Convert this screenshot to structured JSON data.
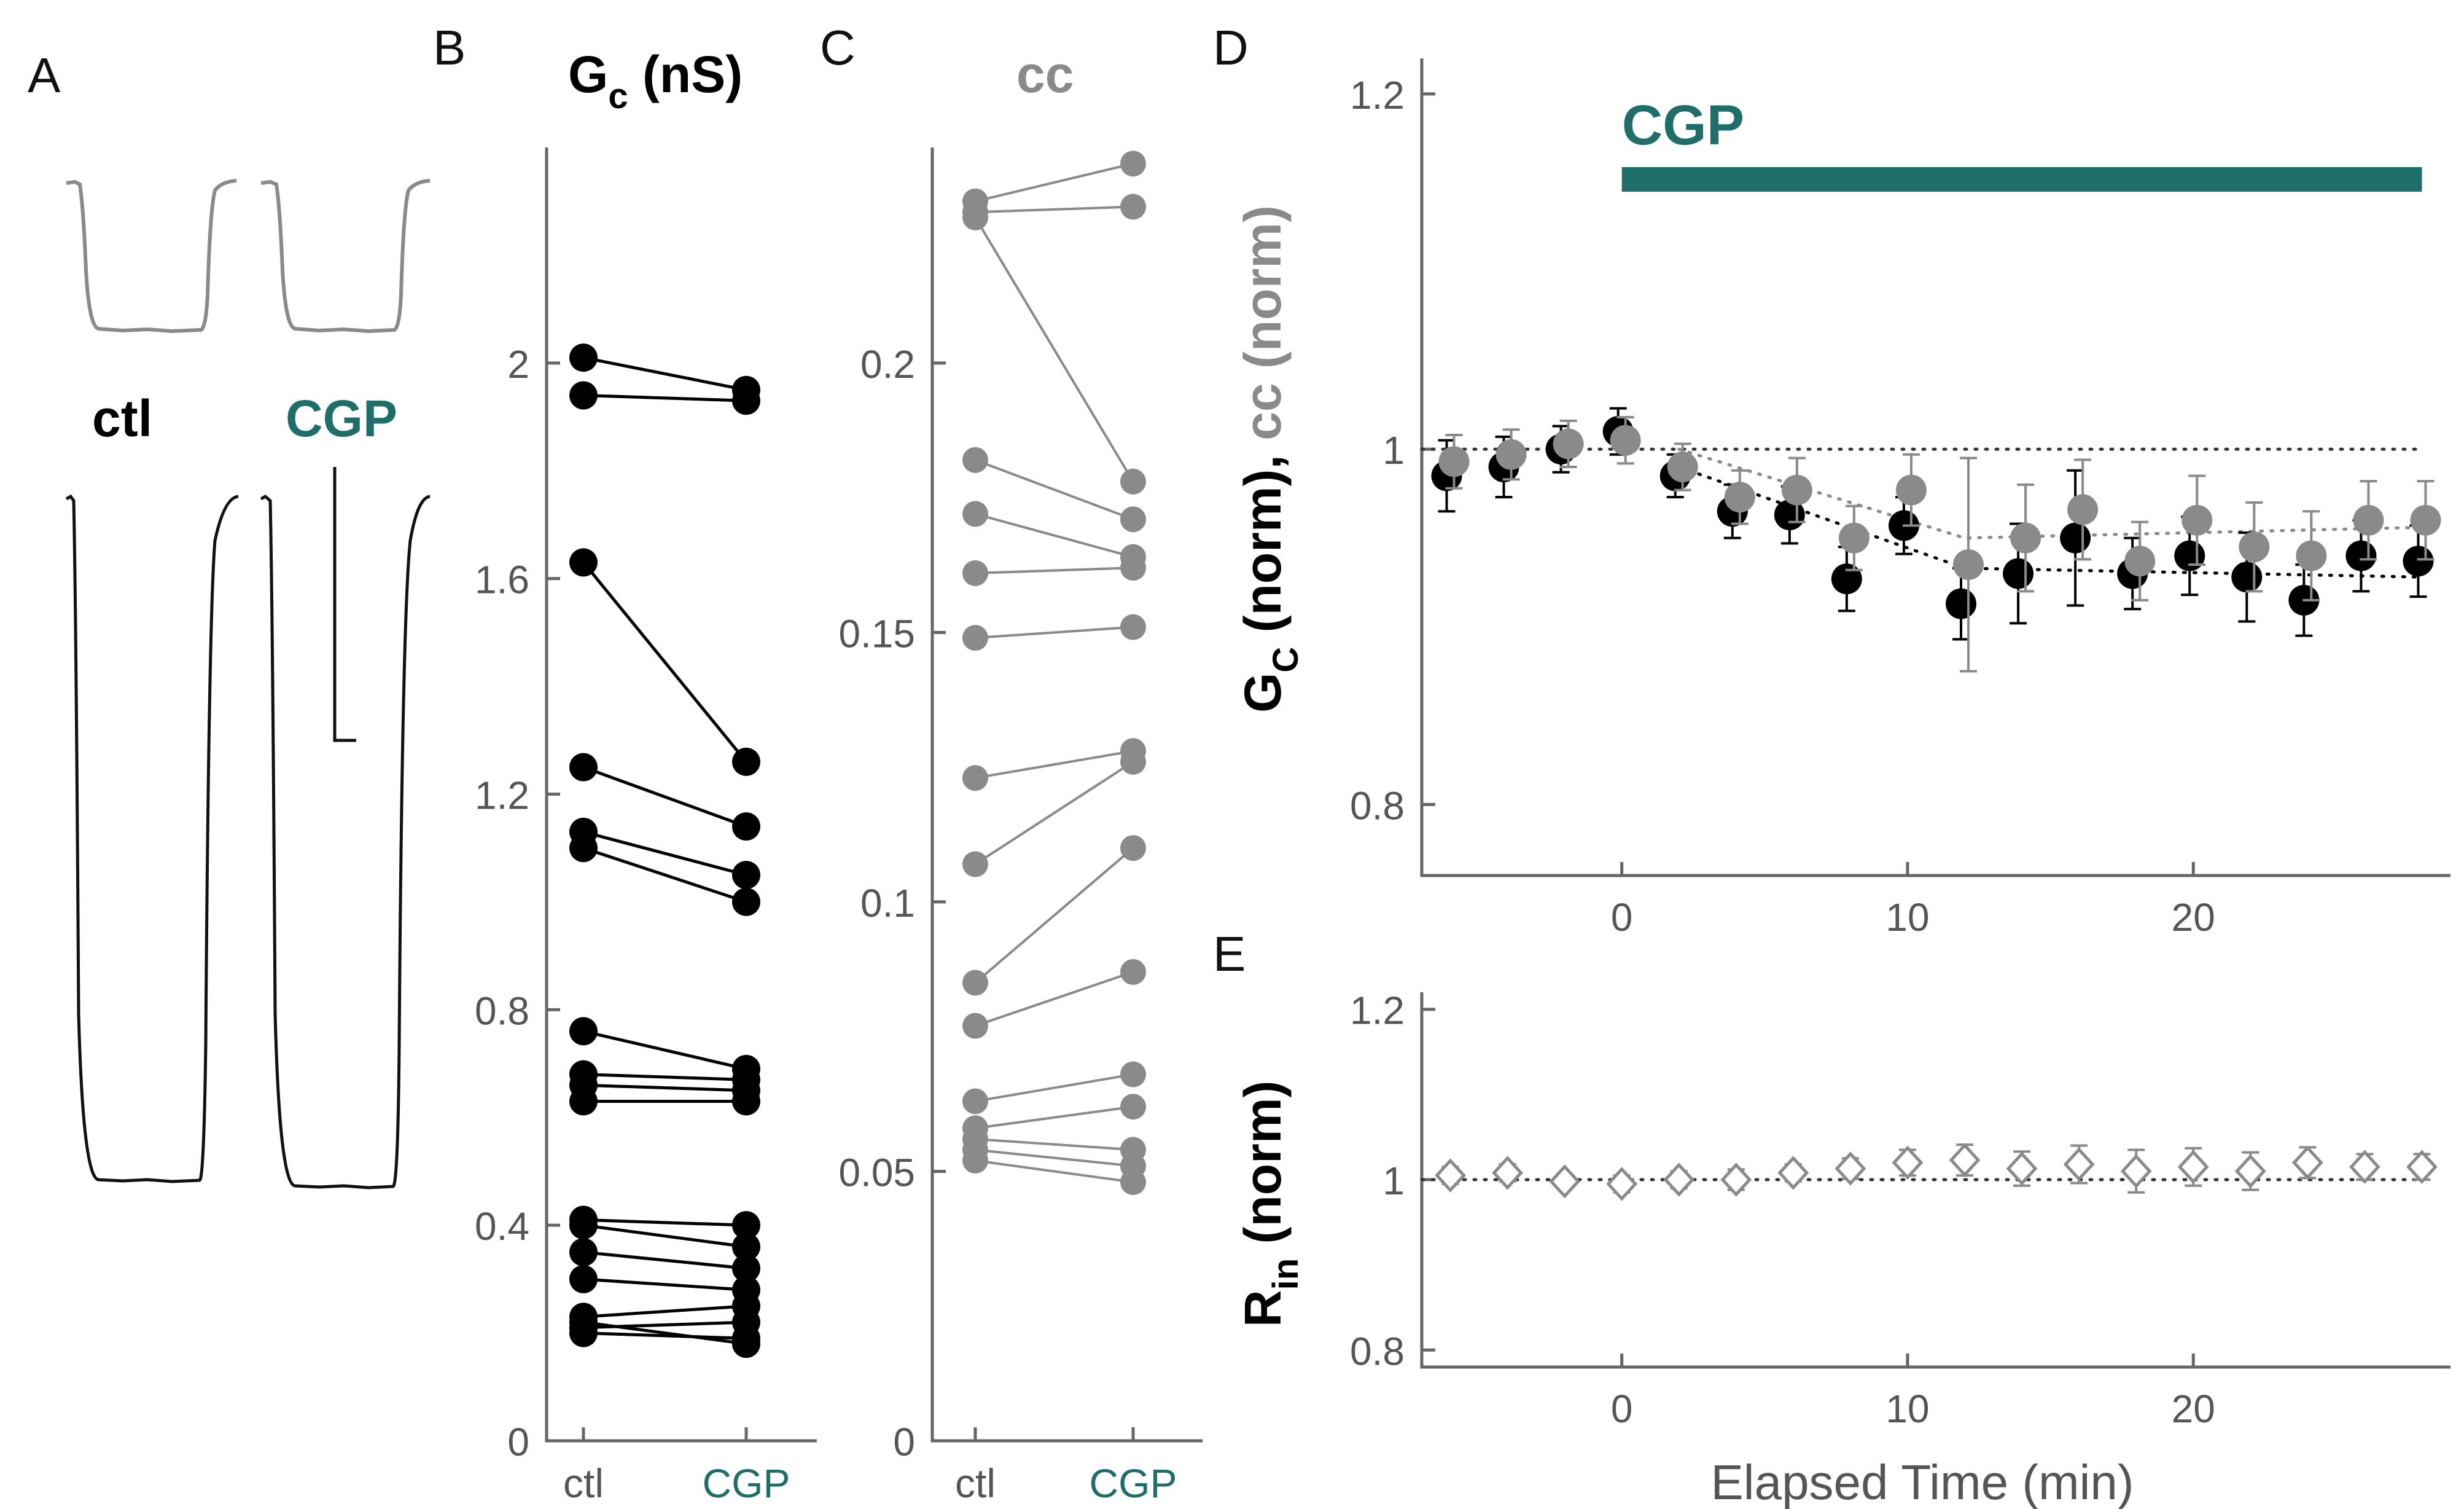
{
  "colors": {
    "black": "#000000",
    "gray": "#8a8a8a",
    "teal": "#1f6e6a",
    "axis": "#666666",
    "dotted": "#333333",
    "tick_text": "#555555"
  },
  "panel_a": {
    "label": "A",
    "ctl_label": "ctl",
    "cgp_label": "CGP"
  },
  "chart_data": [
    {
      "id": "B",
      "type": "scatter",
      "title": "G",
      "title_sub": "c",
      "title_suffix": " (nS)",
      "categories": [
        "ctl",
        "CGP"
      ],
      "ylim": [
        0,
        2.4
      ],
      "yticks": [
        0,
        0.4,
        0.8,
        1.2,
        1.6,
        2
      ],
      "ytick_labels": [
        "0",
        "0.4",
        "0.8",
        "1.2",
        "1.6",
        "2"
      ],
      "pairs": [
        [
          2.01,
          1.95
        ],
        [
          1.94,
          1.93
        ],
        [
          1.63,
          1.26
        ],
        [
          1.25,
          1.14
        ],
        [
          1.13,
          1.05
        ],
        [
          1.1,
          1.0
        ],
        [
          0.76,
          0.69
        ],
        [
          0.68,
          0.67
        ],
        [
          0.66,
          0.65
        ],
        [
          0.63,
          0.63
        ],
        [
          0.41,
          0.4
        ],
        [
          0.4,
          0.36
        ],
        [
          0.35,
          0.32
        ],
        [
          0.3,
          0.28
        ],
        [
          0.23,
          0.25
        ],
        [
          0.21,
          0.22
        ],
        [
          0.2,
          0.19
        ],
        [
          0.22,
          0.18
        ]
      ]
    },
    {
      "id": "C",
      "type": "scatter",
      "title": "cc",
      "categories": [
        "ctl",
        "CGP"
      ],
      "ylim": [
        0,
        0.24
      ],
      "yticks": [
        0,
        0.05,
        0.1,
        0.15,
        0.2
      ],
      "ytick_labels": [
        "0",
        "0.05",
        "0.1",
        "0.15",
        "0.2"
      ],
      "pairs": [
        [
          0.23,
          0.237
        ],
        [
          0.228,
          0.229
        ],
        [
          0.227,
          0.178
        ],
        [
          0.182,
          0.171
        ],
        [
          0.172,
          0.164
        ],
        [
          0.161,
          0.162
        ],
        [
          0.149,
          0.151
        ],
        [
          0.123,
          0.128
        ],
        [
          0.107,
          0.126
        ],
        [
          0.085,
          0.11
        ],
        [
          0.077,
          0.087
        ],
        [
          0.063,
          0.068
        ],
        [
          0.058,
          0.062
        ],
        [
          0.056,
          0.054
        ],
        [
          0.054,
          0.051
        ],
        [
          0.052,
          0.048
        ]
      ]
    },
    {
      "id": "D",
      "type": "scatter",
      "ylabel_main": "G",
      "ylabel_sub": "C",
      "ylabel_rest": " (norm), ",
      "ylabel_cc": "cc (norm)",
      "xlim": [
        -7,
        29
      ],
      "ylim": [
        0.76,
        1.22
      ],
      "yticks": [
        0.8,
        1,
        1.2
      ],
      "ytick_labels": [
        "0.8",
        "1",
        "1.2"
      ],
      "xticks": [
        0,
        10,
        20
      ],
      "xtick_labels": [
        "0",
        "10",
        "20"
      ],
      "drug_bar": {
        "label": "CGP",
        "start": 0,
        "end": 28
      },
      "reference_line": 1,
      "series": [
        {
          "name": "Gc",
          "color": "black",
          "x": [
            -6,
            -4,
            -2,
            0,
            2,
            4,
            6,
            8,
            10,
            12,
            14,
            16,
            18,
            20,
            22,
            24,
            26,
            28
          ],
          "y": [
            0.985,
            0.99,
            1.0,
            1.01,
            0.985,
            0.965,
            0.963,
            0.927,
            0.957,
            0.913,
            0.93,
            0.95,
            0.93,
            0.94,
            0.928,
            0.915,
            0.94,
            0.937
          ],
          "err": [
            0.02,
            0.017,
            0.013,
            0.013,
            0.012,
            0.015,
            0.016,
            0.018,
            0.016,
            0.02,
            0.028,
            0.038,
            0.02,
            0.022,
            0.025,
            0.02,
            0.02,
            0.02
          ]
        },
        {
          "name": "cc",
          "color": "gray",
          "x": [
            -6,
            -4,
            -2,
            0,
            2,
            4,
            6,
            8,
            10,
            12,
            14,
            16,
            18,
            20,
            22,
            24,
            26,
            28
          ],
          "y": [
            0.993,
            0.997,
            1.003,
            1.005,
            0.99,
            0.973,
            0.977,
            0.95,
            0.977,
            0.935,
            0.95,
            0.966,
            0.937,
            0.96,
            0.945,
            0.94,
            0.96,
            0.96
          ],
          "err": [
            0.015,
            0.014,
            0.013,
            0.013,
            0.013,
            0.015,
            0.018,
            0.018,
            0.02,
            0.06,
            0.03,
            0.028,
            0.022,
            0.025,
            0.025,
            0.025,
            0.022,
            0.022
          ]
        }
      ],
      "fit_lines": [
        {
          "name": "Gc-fit",
          "color": "black",
          "x": [
            2,
            12,
            28
          ],
          "y": [
            0.99,
            0.933,
            0.928
          ]
        },
        {
          "name": "cc-fit",
          "color": "gray",
          "x": [
            2,
            12,
            28
          ],
          "y": [
            1.0,
            0.95,
            0.956
          ]
        }
      ]
    },
    {
      "id": "E",
      "type": "scatter",
      "ylabel_main": "R",
      "ylabel_sub": "in",
      "ylabel_rest": " (norm)",
      "xlabel": "Elapsed Time (min)",
      "xlim": [
        -7,
        29
      ],
      "ylim": [
        0.78,
        1.22
      ],
      "yticks": [
        0.8,
        1,
        1.2
      ],
      "ytick_labels": [
        "0.8",
        "1",
        "1.2"
      ],
      "xticks": [
        0,
        10,
        20
      ],
      "xtick_labels": [
        "0",
        "10",
        "20"
      ],
      "reference_line": 1,
      "series": [
        {
          "name": "Rin",
          "color": "gray",
          "marker": "diamond-open",
          "x": [
            -6,
            -4,
            -2,
            0,
            2,
            4,
            6,
            8,
            10,
            12,
            14,
            16,
            18,
            20,
            22,
            24,
            26,
            28
          ],
          "y": [
            1.005,
            1.008,
            0.998,
            0.995,
            1.0,
            1.0,
            1.008,
            1.013,
            1.02,
            1.023,
            1.013,
            1.018,
            1.01,
            1.015,
            1.01,
            1.02,
            1.015,
            1.015
          ],
          "err": [
            0.01,
            0.01,
            0.008,
            0.01,
            0.01,
            0.012,
            0.01,
            0.012,
            0.015,
            0.018,
            0.02,
            0.022,
            0.025,
            0.022,
            0.022,
            0.018,
            0.015,
            0.015
          ]
        }
      ]
    }
  ],
  "panel_labels": {
    "B": "B",
    "C": "C",
    "D": "D",
    "E": "E"
  }
}
